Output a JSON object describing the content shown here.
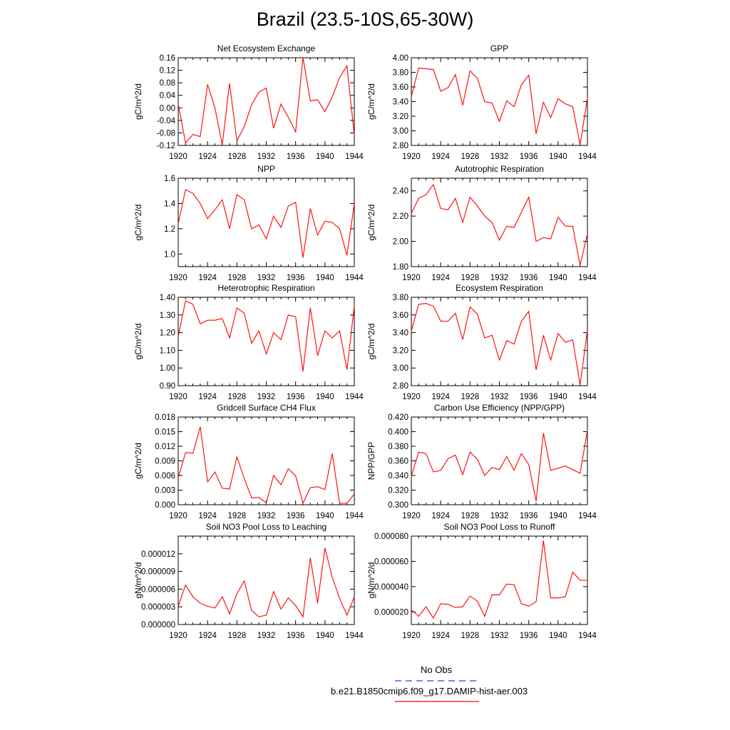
{
  "figure": {
    "title": "Brazil (23.5-10S,65-30W)",
    "x_ticks": [
      "1920",
      "1924",
      "1928",
      "1932",
      "1936",
      "1940",
      "1944"
    ],
    "line_color": "#ff0000",
    "obs_color": "#3333ff"
  },
  "legend": {
    "obs_label": "No Obs",
    "model_label": "b.e21.B1850cmip6.f09_g17.DAMIP-hist-aer.003"
  },
  "chart_data": [
    {
      "type": "line",
      "title": "Net Ecosystem Exchange",
      "ylabel": "gC/m^2/d",
      "ylim": [
        -0.12,
        0.16
      ],
      "yticks": [
        "-0.12",
        "-0.08",
        "-0.04",
        "0.00",
        "0.04",
        "0.08",
        "0.12",
        "0.16"
      ],
      "xlim": [
        1920,
        1944
      ],
      "x": [
        1920,
        1921,
        1922,
        1923,
        1924,
        1925,
        1926,
        1927,
        1928,
        1929,
        1930,
        1931,
        1932,
        1933,
        1934,
        1935,
        1936,
        1937,
        1938,
        1939,
        1940,
        1941,
        1942,
        1943,
        1944
      ],
      "series": [
        {
          "values": [
            0.012,
            -0.112,
            -0.085,
            -0.092,
            0.075,
            0.0,
            -0.118,
            0.078,
            -0.105,
            -0.06,
            0.01,
            0.05,
            0.063,
            -0.065,
            0.012,
            -0.03,
            -0.077,
            0.161,
            0.022,
            0.026,
            -0.012,
            0.035,
            0.097,
            0.134,
            -0.088
          ]
        }
      ]
    },
    {
      "type": "line",
      "title": "GPP",
      "ylabel": "gC/m^2/d",
      "ylim": [
        2.8,
        4.0
      ],
      "yticks": [
        "2.80",
        "3.00",
        "3.20",
        "3.40",
        "3.60",
        "3.80",
        "4.00"
      ],
      "xlim": [
        1920,
        1944
      ],
      "x": [
        1920,
        1921,
        1922,
        1923,
        1924,
        1925,
        1926,
        1927,
        1928,
        1929,
        1930,
        1931,
        1932,
        1933,
        1934,
        1935,
        1936,
        1937,
        1938,
        1939,
        1940,
        1941,
        1942,
        1943,
        1944
      ],
      "series": [
        {
          "values": [
            3.47,
            3.86,
            3.85,
            3.84,
            3.54,
            3.59,
            3.77,
            3.35,
            3.82,
            3.72,
            3.4,
            3.38,
            3.13,
            3.41,
            3.33,
            3.63,
            3.76,
            2.96,
            3.39,
            3.18,
            3.44,
            3.37,
            3.33,
            2.81,
            3.45
          ]
        }
      ]
    },
    {
      "type": "line",
      "title": "NPP",
      "ylabel": "gC/m^2/d",
      "ylim": [
        0.9,
        1.6
      ],
      "yticks": [
        "1.0",
        "1.2",
        "1.4",
        "1.6"
      ],
      "xlim": [
        1920,
        1944
      ],
      "x": [
        1920,
        1921,
        1922,
        1923,
        1924,
        1925,
        1926,
        1927,
        1928,
        1929,
        1930,
        1931,
        1932,
        1933,
        1934,
        1935,
        1936,
        1937,
        1938,
        1939,
        1940,
        1941,
        1942,
        1943,
        1944
      ],
      "series": [
        {
          "values": [
            1.24,
            1.51,
            1.48,
            1.4,
            1.28,
            1.35,
            1.43,
            1.2,
            1.47,
            1.43,
            1.2,
            1.23,
            1.12,
            1.3,
            1.21,
            1.38,
            1.41,
            0.97,
            1.36,
            1.15,
            1.26,
            1.25,
            1.2,
            0.99,
            1.4
          ]
        }
      ]
    },
    {
      "type": "line",
      "title": "Autotrophic Respiration",
      "ylabel": "gC/m^2/d",
      "ylim": [
        1.8,
        2.5
      ],
      "yticks": [
        "1.80",
        "2.00",
        "2.20",
        "2.40"
      ],
      "xlim": [
        1920,
        1944
      ],
      "x": [
        1920,
        1921,
        1922,
        1923,
        1924,
        1925,
        1926,
        1927,
        1928,
        1929,
        1930,
        1931,
        1932,
        1933,
        1934,
        1935,
        1936,
        1937,
        1938,
        1939,
        1940,
        1941,
        1942,
        1943,
        1944
      ],
      "series": [
        {
          "values": [
            2.22,
            2.34,
            2.37,
            2.45,
            2.26,
            2.25,
            2.34,
            2.15,
            2.35,
            2.28,
            2.2,
            2.15,
            2.01,
            2.12,
            2.11,
            2.23,
            2.35,
            2.0,
            2.03,
            2.02,
            2.19,
            2.12,
            2.12,
            1.81,
            2.06
          ]
        }
      ]
    },
    {
      "type": "line",
      "title": "Heterotrophic Respiration",
      "ylabel": "gC/m^2/d",
      "ylim": [
        0.9,
        1.4
      ],
      "yticks": [
        "0.90",
        "1.00",
        "1.10",
        "1.20",
        "1.30",
        "1.40"
      ],
      "xlim": [
        1920,
        1944
      ],
      "x": [
        1920,
        1921,
        1922,
        1923,
        1924,
        1925,
        1926,
        1927,
        1928,
        1929,
        1930,
        1931,
        1932,
        1933,
        1934,
        1935,
        1936,
        1937,
        1938,
        1939,
        1940,
        1941,
        1942,
        1943,
        1944
      ],
      "series": [
        {
          "values": [
            1.18,
            1.38,
            1.36,
            1.25,
            1.27,
            1.27,
            1.28,
            1.17,
            1.34,
            1.31,
            1.14,
            1.21,
            1.08,
            1.2,
            1.16,
            1.3,
            1.29,
            0.98,
            1.34,
            1.07,
            1.21,
            1.17,
            1.21,
            0.99,
            1.35
          ]
        }
      ]
    },
    {
      "type": "line",
      "title": "Ecosystem Respiration",
      "ylabel": "gC/m^2/d",
      "ylim": [
        2.8,
        3.8
      ],
      "yticks": [
        "2.80",
        "3.00",
        "3.20",
        "3.40",
        "3.60",
        "3.80"
      ],
      "xlim": [
        1920,
        1944
      ],
      "x": [
        1920,
        1921,
        1922,
        1923,
        1924,
        1925,
        1926,
        1927,
        1928,
        1929,
        1930,
        1931,
        1932,
        1933,
        1934,
        1935,
        1936,
        1937,
        1938,
        1939,
        1940,
        1941,
        1942,
        1943,
        1944
      ],
      "series": [
        {
          "values": [
            3.42,
            3.72,
            3.73,
            3.7,
            3.53,
            3.53,
            3.62,
            3.32,
            3.69,
            3.61,
            3.34,
            3.37,
            3.09,
            3.31,
            3.27,
            3.53,
            3.64,
            2.98,
            3.37,
            3.09,
            3.39,
            3.29,
            3.32,
            2.81,
            3.43
          ]
        }
      ]
    },
    {
      "type": "line",
      "title": "Gridcell Surface CH4 Flux",
      "ylabel": "gC/m^2/d",
      "ylim": [
        0.0,
        0.018
      ],
      "yticks": [
        "0.000",
        "0.003",
        "0.006",
        "0.009",
        "0.012",
        "0.015",
        "0.018"
      ],
      "xlim": [
        1920,
        1944
      ],
      "x": [
        1920,
        1921,
        1922,
        1923,
        1924,
        1925,
        1926,
        1927,
        1928,
        1929,
        1930,
        1931,
        1932,
        1933,
        1934,
        1935,
        1936,
        1937,
        1938,
        1939,
        1940,
        1941,
        1942,
        1943,
        1944
      ],
      "series": [
        {
          "values": [
            0.0055,
            0.0107,
            0.0106,
            0.016,
            0.0047,
            0.0067,
            0.0034,
            0.0032,
            0.0098,
            0.0054,
            0.0014,
            0.0015,
            0.0004,
            0.006,
            0.0041,
            0.0074,
            0.0059,
            0.0003,
            0.0035,
            0.0037,
            0.0031,
            0.0105,
            0.0003,
            0.0003,
            0.0022
          ]
        }
      ]
    },
    {
      "type": "line",
      "title": "Carbon Use Efficiency (NPP/GPP)",
      "ylabel": "NPP/GPP",
      "ylim": [
        0.3,
        0.42
      ],
      "yticks": [
        "0.300",
        "0.320",
        "0.340",
        "0.360",
        "0.380",
        "0.400",
        "0.420"
      ],
      "xlim": [
        1920,
        1944
      ],
      "x": [
        1920,
        1921,
        1922,
        1923,
        1924,
        1925,
        1926,
        1927,
        1928,
        1929,
        1930,
        1931,
        1932,
        1933,
        1934,
        1935,
        1936,
        1937,
        1938,
        1939,
        1940,
        1941,
        1942,
        1943,
        1944
      ],
      "series": [
        {
          "values": [
            0.339,
            0.372,
            0.37,
            0.345,
            0.347,
            0.363,
            0.368,
            0.341,
            0.372,
            0.362,
            0.34,
            0.351,
            0.348,
            0.366,
            0.347,
            0.37,
            0.355,
            0.305,
            0.398,
            0.347,
            0.35,
            0.353,
            0.348,
            0.343,
            0.402
          ]
        }
      ]
    },
    {
      "type": "line",
      "title": "Soil NO3 Pool Loss to Leaching",
      "ylabel": "gN/m^2/d",
      "ylim": [
        0.0,
        1.5e-05
      ],
      "yticks": [
        "0.000000",
        "0.000003",
        "0.000006",
        "0.000009",
        "0.000012"
      ],
      "xlim": [
        1920,
        1944
      ],
      "x": [
        1920,
        1921,
        1922,
        1923,
        1924,
        1925,
        1926,
        1927,
        1928,
        1929,
        1930,
        1931,
        1932,
        1933,
        1934,
        1935,
        1936,
        1937,
        1938,
        1939,
        1940,
        1941,
        1942,
        1943,
        1944
      ],
      "series": [
        {
          "values": [
            3.1e-06,
            6.7e-06,
            4.7e-06,
            3.6e-06,
            3.1e-06,
            2.8e-06,
            4.7e-06,
            1.8e-06,
            5.2e-06,
            7.4e-06,
            2.4e-06,
            1.3e-06,
            1.6e-06,
            5.6e-06,
            2.6e-06,
            4.5e-06,
            3.2e-06,
            1.3e-06,
            1.13e-05,
            3.6e-06,
            1.3e-05,
            8e-06,
            4.4e-06,
            1.6e-06,
            4.7e-06
          ]
        }
      ]
    },
    {
      "type": "line",
      "title": "Soil NO3 Pool Loss to Runoff",
      "ylabel": "gN/m^2/d",
      "ylim": [
        1e-05,
        8e-05
      ],
      "yticks": [
        "0.000020",
        "0.000040",
        "0.000060",
        "0.000080"
      ],
      "xlim": [
        1920,
        1944
      ],
      "x": [
        1920,
        1921,
        1922,
        1923,
        1924,
        1925,
        1926,
        1927,
        1928,
        1929,
        1930,
        1931,
        1932,
        1933,
        1934,
        1935,
        1936,
        1937,
        1938,
        1939,
        1940,
        1941,
        1942,
        1943,
        1944
      ],
      "series": [
        {
          "values": [
            2.15e-05,
            1.65e-05,
            2.4e-05,
            1.5e-05,
            2.65e-05,
            2.6e-05,
            2.35e-05,
            2.4e-05,
            3.25e-05,
            2.85e-05,
            1.65e-05,
            3.35e-05,
            3.35e-05,
            4.2e-05,
            4.15e-05,
            2.65e-05,
            2.45e-05,
            2.8e-05,
            7.65e-05,
            3.1e-05,
            3.1e-05,
            3.2e-05,
            5.15e-05,
            4.5e-05,
            4.5e-05
          ]
        }
      ]
    }
  ]
}
